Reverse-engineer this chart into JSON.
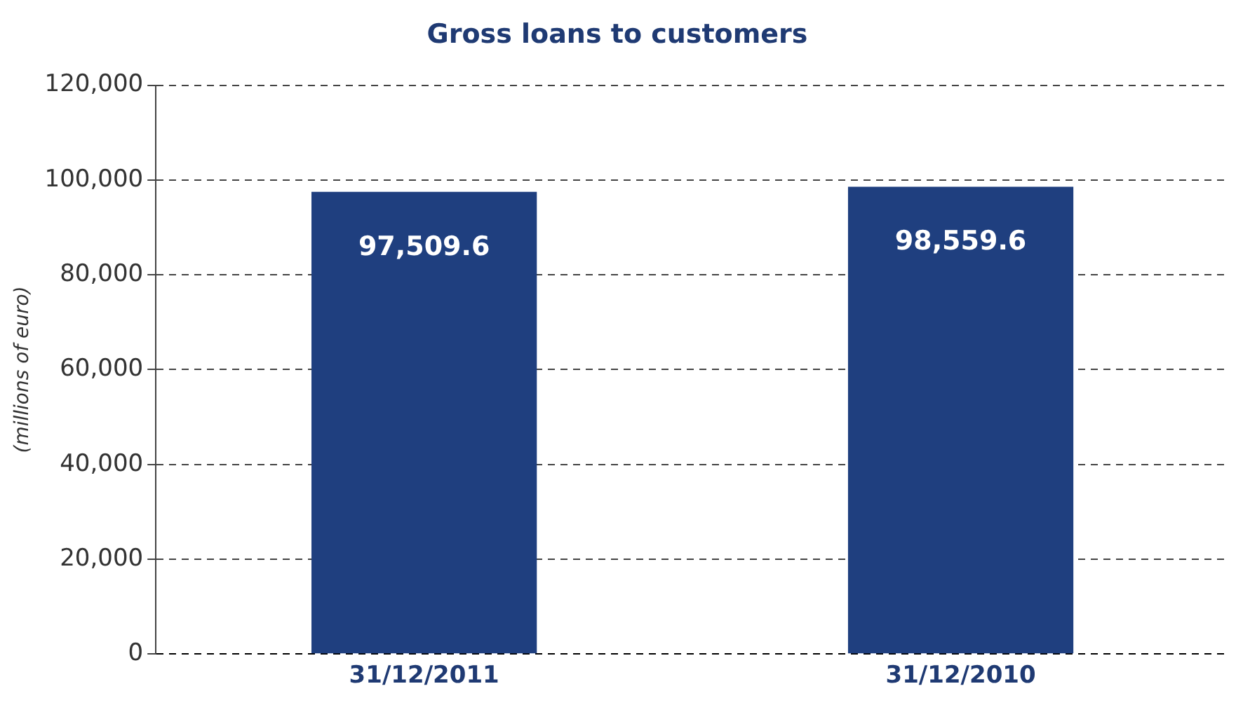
{
  "chart_data": {
    "type": "bar",
    "title": "Gross loans to customers",
    "ylabel": "(millions of euro)",
    "categories": [
      "31/12/2011",
      "31/12/2010"
    ],
    "values": [
      97509.6,
      98559.6
    ],
    "color": "#1f3f7f",
    "value_labels": [
      "97,509.6",
      "98,559.6"
    ],
    "ylim": [
      0,
      120000
    ],
    "yticks": [
      0,
      {
        "value": 20000,
        "label": "20,000"
      },
      {
        "value": 40000,
        "label": "40,000"
      },
      {
        "value": 60000,
        "label": "60,000"
      },
      {
        "value": 80000,
        "label": "80,000"
      },
      {
        "value": 100000,
        "label": "100,000"
      },
      {
        "value": 120000,
        "label": "120,000"
      }
    ],
    "grid": "y"
  }
}
